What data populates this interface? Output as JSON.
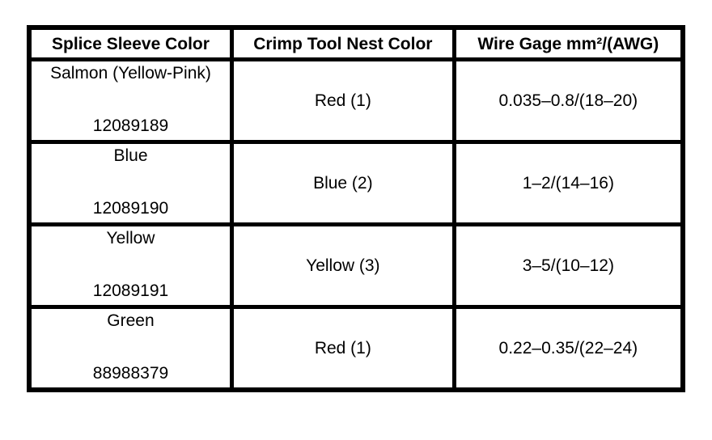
{
  "page": {
    "background_color": "#ffffff",
    "text_color": "#000000",
    "border_color": "#000000"
  },
  "table": {
    "headers": [
      "Splice Sleeve Color",
      "Crimp Tool Nest Color",
      "Wire Gage mm²/(AWG)"
    ],
    "rows": [
      {
        "sleeve_color": "Salmon (Yellow-Pink)",
        "part_number": "12089189",
        "nest_color": "Red (1)",
        "wire_gage": "0.035–0.8/(18–20)"
      },
      {
        "sleeve_color": "Blue",
        "part_number": "12089190",
        "nest_color": "Blue (2)",
        "wire_gage": "1–2/(14–16)"
      },
      {
        "sleeve_color": "Yellow",
        "part_number": "12089191",
        "nest_color": "Yellow (3)",
        "wire_gage": "3–5/(10–12)"
      },
      {
        "sleeve_color": "Green",
        "part_number": "88988379",
        "nest_color": "Red (1)",
        "wire_gage": "0.22–0.35/(22–24)"
      }
    ]
  }
}
